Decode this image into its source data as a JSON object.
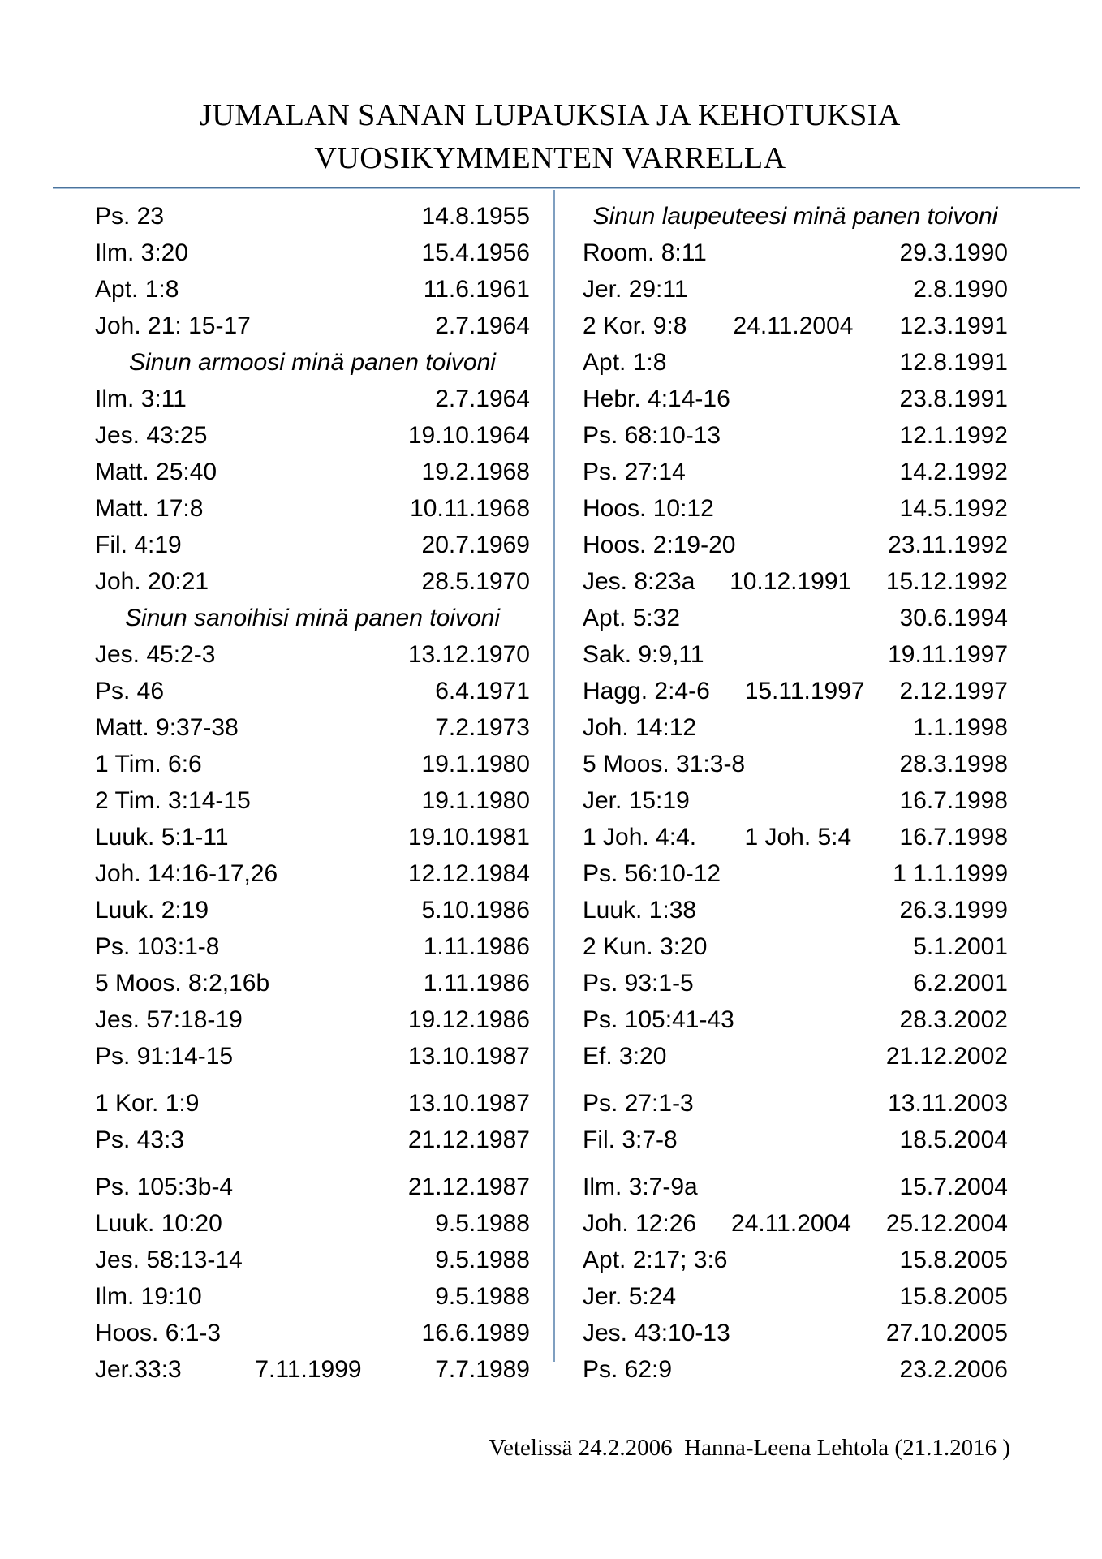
{
  "title": {
    "line1": "JUMALAN SANAN LUPAUKSIA JA KEHOTUKSIA",
    "line2": "VUOSIKYMMENTEN VARRELLA"
  },
  "footer": "Vetelissä 24.2.2006  Hanna-Leena Lehtola (21.1.2016 )",
  "accent_line_color": "#4c739b",
  "columns": {
    "left": {
      "rows": [
        {
          "ref": "Ps. 23",
          "mid": "",
          "date": "14.8.1955"
        },
        {
          "ref": "Ilm. 3:20",
          "mid": "",
          "date": "15.4.1956"
        },
        {
          "ref": "Apt. 1:8",
          "mid": "",
          "date": "11.6.1961"
        },
        {
          "ref": "Joh. 21: 15-17",
          "mid": "",
          "date": "2.7.1964"
        },
        {
          "header": "Sinun armoosi minä panen toivoni"
        },
        {
          "ref": "Ilm. 3:11",
          "mid": "",
          "date": "2.7.1964"
        },
        {
          "ref": "Jes. 43:25",
          "mid": "",
          "date": "19.10.1964"
        },
        {
          "ref": "Matt. 25:40",
          "mid": "",
          "date": "19.2.1968"
        },
        {
          "ref": "Matt. 17:8",
          "mid": "",
          "date": "10.11.1968"
        },
        {
          "ref": "Fil. 4:19",
          "mid": "",
          "date": "20.7.1969"
        },
        {
          "ref": "Joh. 20:21",
          "mid": "",
          "date": "28.5.1970"
        },
        {
          "header": "Sinun sanoihisi minä panen toivoni"
        },
        {
          "ref": "Jes. 45:2-3",
          "mid": "",
          "date": "13.12.1970"
        },
        {
          "ref": "Ps. 46",
          "mid": "",
          "date": "6.4.1971"
        },
        {
          "ref": "Matt. 9:37-38",
          "mid": "",
          "date": "7.2.1973"
        },
        {
          "ref": "1 Tim. 6:6",
          "mid": "",
          "date": "19.1.1980"
        },
        {
          "ref": "2 Tim. 3:14-15",
          "mid": "",
          "date": "19.1.1980"
        },
        {
          "ref": "Luuk. 5:1-11",
          "mid": "",
          "date": "19.10.1981"
        },
        {
          "ref": "Joh. 14:16-17,26",
          "mid": "",
          "date": "12.12.1984"
        },
        {
          "ref": "Luuk. 2:19",
          "mid": "",
          "date": "5.10.1986"
        },
        {
          "ref": "Ps. 103:1-8",
          "mid": "",
          "date": "1.11.1986"
        },
        {
          "ref": "5 Moos. 8:2,16b",
          "mid": "",
          "date": "1.11.1986"
        },
        {
          "ref": "Jes. 57:18-19",
          "mid": "",
          "date": "19.12.1986"
        },
        {
          "ref": "Ps. 91:14-15",
          "mid": "",
          "date": "13.10.1987"
        },
        {
          "ref": "1 Kor. 1:9",
          "mid": "",
          "date": "13.10.1987",
          "gap": true
        },
        {
          "ref": "Ps. 43:3",
          "mid": "",
          "date": "21.12.1987"
        },
        {
          "ref": "Ps. 105:3b-4",
          "mid": "",
          "date": "21.12.1987",
          "gap": true
        },
        {
          "ref": "Luuk. 10:20",
          "mid": "",
          "date": "9.5.1988"
        },
        {
          "ref": "Jes. 58:13-14",
          "mid": "",
          "date": "9.5.1988"
        },
        {
          "ref": "Ilm. 19:10",
          "mid": "",
          "date": "9.5.1988"
        },
        {
          "ref": "Hoos. 6:1-3",
          "mid": "",
          "date": "16.6.1989"
        },
        {
          "ref": "Jer.33:3",
          "mid": "7.11.1999",
          "date": "7.7.1989"
        }
      ]
    },
    "right": {
      "rows": [
        {
          "header": "Sinun laupeuteesi minä panen toivoni"
        },
        {
          "ref": "Room. 8:11",
          "mid": "",
          "date": "29.3.1990"
        },
        {
          "ref": "Jer. 29:11",
          "mid": "",
          "date": "2.8.1990"
        },
        {
          "ref": "2 Kor. 9:8",
          "mid": "24.11.2004",
          "date": "12.3.1991"
        },
        {
          "ref": "Apt. 1:8",
          "mid": "",
          "date": "12.8.1991"
        },
        {
          "ref": "Hebr. 4:14-16",
          "mid": "",
          "date": "23.8.1991"
        },
        {
          "ref": "Ps. 68:10-13",
          "mid": "",
          "date": "12.1.1992"
        },
        {
          "ref": "Ps. 27:14",
          "mid": "",
          "date": "14.2.1992"
        },
        {
          "ref": "Hoos. 10:12",
          "mid": "",
          "date": "14.5.1992"
        },
        {
          "ref": "Hoos. 2:19-20",
          "mid": "",
          "date": "23.11.1992"
        },
        {
          "ref": "Jes. 8:23a",
          "mid": "10.12.1991",
          "date": "15.12.1992"
        },
        {
          "ref": "Apt. 5:32",
          "mid": "",
          "date": "30.6.1994"
        },
        {
          "ref": "Sak. 9:9,11",
          "mid": "",
          "date": "19.11.1997"
        },
        {
          "ref": "Hagg. 2:4-6",
          "mid": "15.11.1997",
          "date": "2.12.1997"
        },
        {
          "ref": "Joh. 14:12",
          "mid": "",
          "date": "1.1.1998"
        },
        {
          "ref": "5 Moos. 31:3-8",
          "mid": "",
          "date": "28.3.1998"
        },
        {
          "ref": "Jer. 15:19",
          "mid": "",
          "date": "16.7.1998"
        },
        {
          "ref": "1 Joh. 4:4.",
          "mid": "1 Joh. 5:4",
          "date": "16.7.1998"
        },
        {
          "ref": "Ps. 56:10-12",
          "mid": "",
          "date": "1 1.1.1999"
        },
        {
          "ref": "Luuk. 1:38",
          "mid": "",
          "date": "26.3.1999"
        },
        {
          "ref": "2 Kun. 3:20",
          "mid": "",
          "date": "5.1.2001"
        },
        {
          "ref": "Ps. 93:1-5",
          "mid": "",
          "date": "6.2.2001"
        },
        {
          "ref": "Ps. 105:41-43",
          "mid": "",
          "date": "28.3.2002"
        },
        {
          "ref": "Ef. 3:20",
          "mid": "",
          "date": "21.12.2002"
        },
        {
          "ref": "Ps. 27:1-3",
          "mid": "",
          "date": "13.11.2003",
          "gap": true
        },
        {
          "ref": "Fil. 3:7-8",
          "mid": "",
          "date": "18.5.2004"
        },
        {
          "ref": "Ilm. 3:7-9a",
          "mid": "",
          "date": "15.7.2004",
          "gap": true
        },
        {
          "ref": "Joh. 12:26",
          "mid": "24.11.2004",
          "date": "25.12.2004"
        },
        {
          "ref": "Apt. 2:17; 3:6",
          "mid": "",
          "date": "15.8.2005"
        },
        {
          "ref": "Jer. 5:24",
          "mid": "",
          "date": "15.8.2005"
        },
        {
          "ref": "Jes. 43:10-13",
          "mid": "",
          "date": "27.10.2005"
        },
        {
          "ref": "Ps. 62:9",
          "mid": "",
          "date": "23.2.2006"
        }
      ]
    }
  }
}
